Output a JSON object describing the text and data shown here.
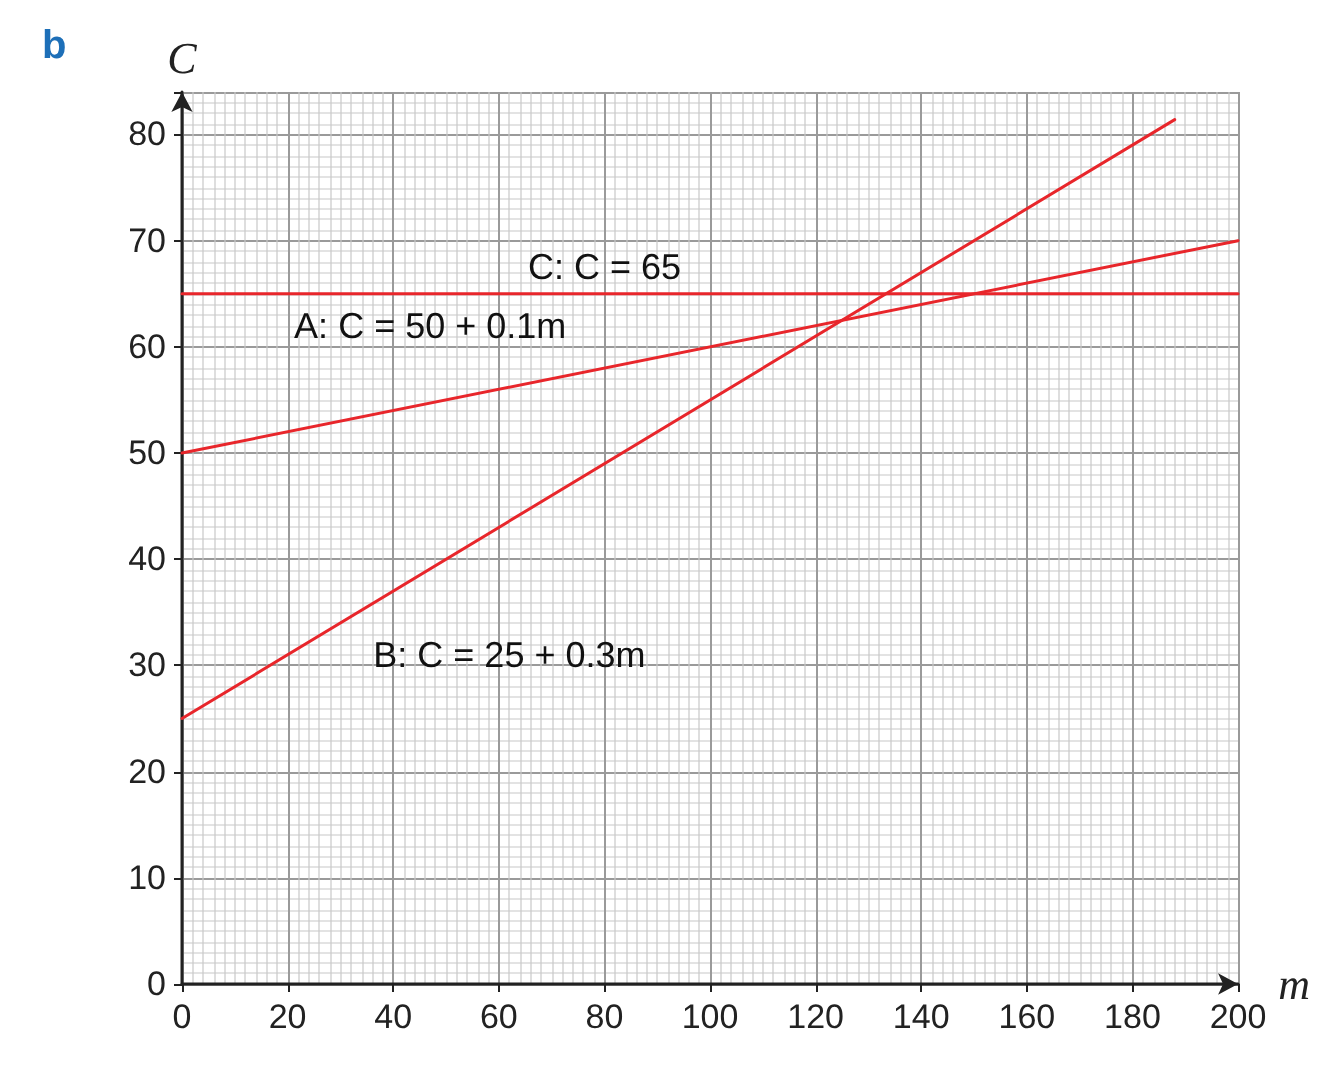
{
  "chart_data": {
    "type": "line",
    "title": "b",
    "xlabel": "m",
    "ylabel": "C",
    "xlim": [
      0,
      200
    ],
    "ylim": [
      0,
      84
    ],
    "xticks": [
      0,
      20,
      40,
      60,
      80,
      100,
      120,
      140,
      160,
      180,
      200
    ],
    "yticks": [
      0,
      10,
      20,
      30,
      40,
      50,
      60,
      70,
      80
    ],
    "grid": true,
    "marker": "none",
    "line_style": "solid",
    "series": [
      {
        "color": "#e8262b",
        "x": [
          0,
          200
        ],
        "values": [
          50,
          70
        ]
      },
      {
        "color": "#e8262b",
        "x": [
          0,
          188
        ],
        "values": [
          25,
          81.4
        ]
      },
      {
        "color": "#e8262b",
        "x": [
          0,
          200
        ],
        "values": [
          65,
          65
        ]
      }
    ],
    "annotations": [
      "C: C = 65",
      "A: C = 50 + 0.1m",
      "B: C = 25 + 0.3m"
    ]
  }
}
